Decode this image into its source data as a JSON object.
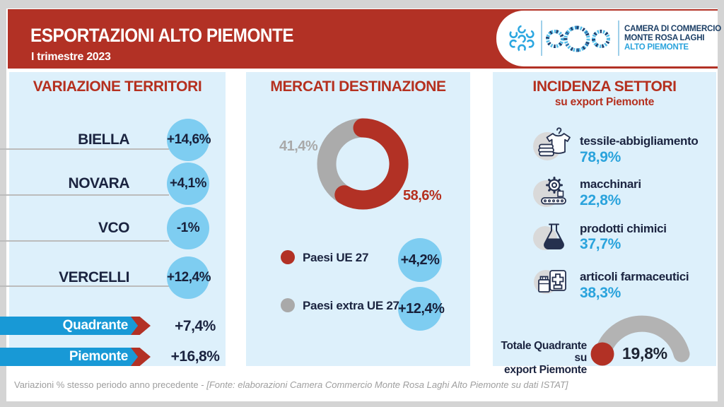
{
  "header": {
    "title": "ESPORTAZIONI ALTO PIEMONTE",
    "subtitle": "I trimestre 2023"
  },
  "logo": {
    "org_line1": "CAMERA DI COMMERCIO",
    "org_line2": "MONTE ROSA LAGHI",
    "org_line3": "ALTO PIEMONTE"
  },
  "colors": {
    "brand_red": "#b23125",
    "sky_blue": "#7ecdf1",
    "banner_blue": "#1899d6",
    "value_blue": "#2aa3dc",
    "navy": "#1b2440",
    "gray": "#b1b1b1"
  },
  "territori": {
    "title": "VARIAZIONE TERRITORI",
    "rows": [
      {
        "label": "BIELLA",
        "value": "+14,6%"
      },
      {
        "label": "NOVARA",
        "value": "+4,1%"
      },
      {
        "label": "VCO",
        "value": "-1%"
      },
      {
        "label": "VERCELLI",
        "value": "+12,4%"
      }
    ],
    "totals": [
      {
        "label": "Quadrante",
        "value": "+7,4%"
      },
      {
        "label": "Piemonte",
        "value": "+16,8%"
      }
    ]
  },
  "mercati": {
    "title": "MERCATI DESTINAZIONE",
    "share_extra": "41,4%",
    "share_ue": "58,6%",
    "legend": [
      {
        "label": "Paesi UE 27",
        "value": "+4,2%"
      },
      {
        "label": "Paesi extra UE 27",
        "value": "+12,4%"
      }
    ]
  },
  "settori": {
    "title": "INCIDENZA SETTORI",
    "subtitle": "su export Piemonte",
    "items": [
      {
        "icon": "tshirt-icon",
        "label": "tessile-abbigliamento",
        "value": "78,9%"
      },
      {
        "icon": "gear-icon",
        "label": "macchinari",
        "value": "22,8%"
      },
      {
        "icon": "flask-icon",
        "label": "prodotti chimici",
        "value": "37,7%"
      },
      {
        "icon": "pharma-icon",
        "label": "articoli farmaceutici",
        "value": "38,3%"
      }
    ],
    "gauge": {
      "label_line1": "Totale Quadrante su",
      "label_line2": "export Piemonte",
      "value": "19,8%"
    }
  },
  "footer": {
    "note": "Variazioni % stesso periodo anno precedente - ",
    "source": "[Fonte: elaborazioni Camera Commercio Monte Rosa Laghi Alto Piemonte su dati ISTAT]"
  },
  "chart_data": [
    {
      "type": "pie",
      "donut": true,
      "title": "MERCATI DESTINAZIONE",
      "labels": [
        "Paesi UE 27",
        "Paesi extra UE 27"
      ],
      "values": [
        58.6,
        41.4
      ],
      "colors": [
        "#b23125",
        "#ababab"
      ],
      "annotations": [
        "58,6%",
        "41,4%"
      ],
      "legend_position": "below"
    },
    {
      "type": "table",
      "title": "VARIAZIONE TERRITORI (var. % su stesso periodo anno precedente)",
      "categories": [
        "BIELLA",
        "NOVARA",
        "VCO",
        "VERCELLI",
        "Quadrante",
        "Piemonte"
      ],
      "values": [
        14.6,
        4.1,
        -1,
        12.4,
        7.4,
        16.8
      ],
      "unit": "%"
    },
    {
      "type": "table",
      "title": "Variazione per mercato di destinazione",
      "categories": [
        "Paesi UE 27",
        "Paesi extra UE 27"
      ],
      "values": [
        4.2,
        12.4
      ],
      "unit": "%"
    },
    {
      "type": "table",
      "title": "INCIDENZA SETTORI su export Piemonte",
      "categories": [
        "tessile-abbigliamento",
        "macchinari",
        "prodotti chimici",
        "articoli farmaceutici"
      ],
      "values": [
        78.9,
        22.8,
        37.7,
        38.3
      ],
      "unit": "%"
    },
    {
      "type": "gauge",
      "title": "Totale Quadrante su export Piemonte",
      "value": 19.8,
      "min": 0,
      "max": 100,
      "unit": "%"
    }
  ]
}
